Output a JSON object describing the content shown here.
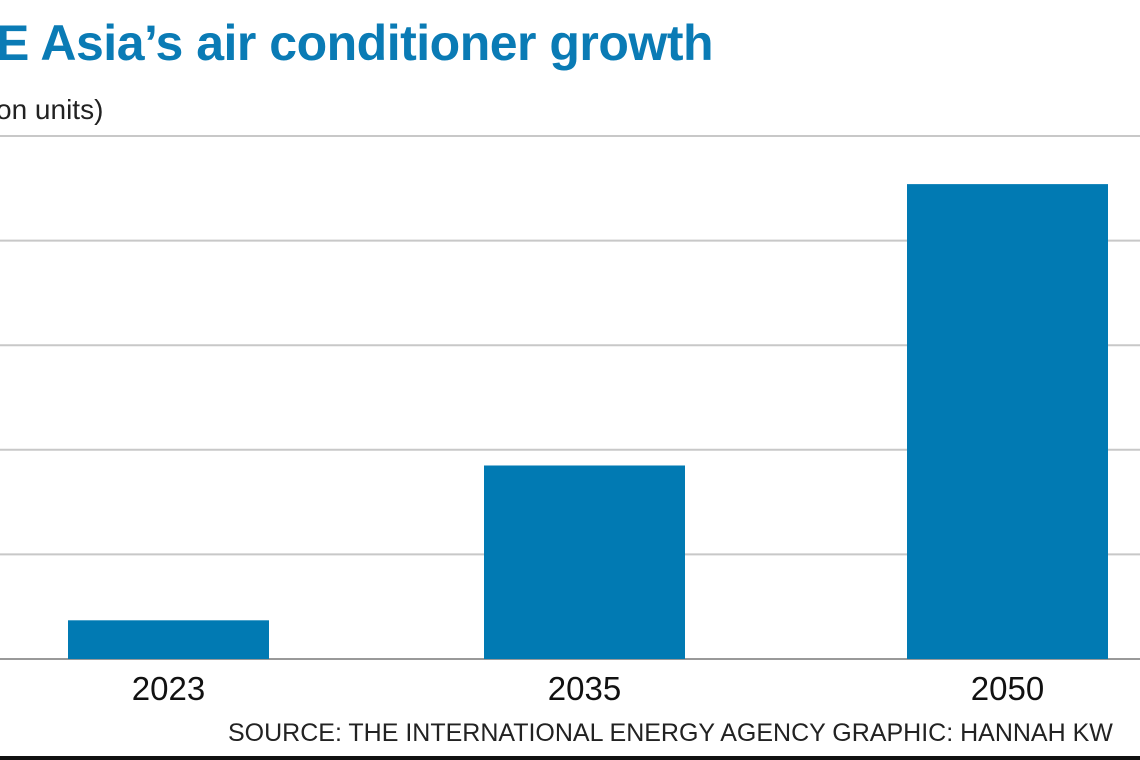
{
  "chart_data": {
    "type": "bar",
    "title": "E Asia’s air conditioner growth",
    "subtitle": "on units)",
    "categories": [
      "2023",
      "2035",
      "2050"
    ],
    "values": [
      0.37,
      1.85,
      4.54
    ],
    "ylim": [
      0,
      5
    ],
    "grid": true,
    "bar_color": "#017ab3",
    "title_color": "#0a7bb5",
    "source": "SOURCE: THE INTERNATIONAL ENERGY AGENCY   GRAPHIC: HANNAH KW"
  }
}
